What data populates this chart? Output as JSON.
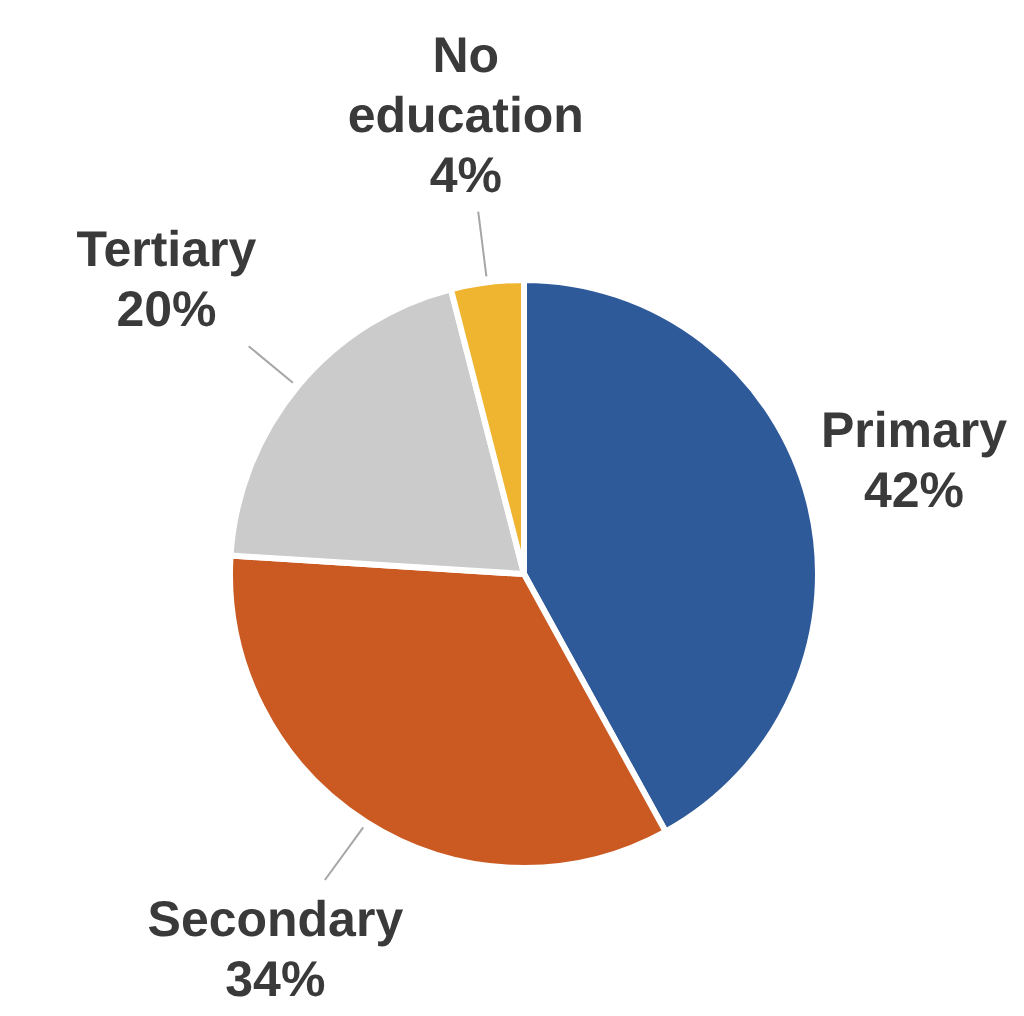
{
  "chart_data": {
    "type": "pie",
    "categories": [
      "Primary",
      "Secondary",
      "Tertiary",
      "No education"
    ],
    "values": [
      42,
      34,
      20,
      4
    ],
    "value_labels": [
      "42%",
      "34%",
      "20%",
      "4%"
    ],
    "colors": [
      "#2e5a9a",
      "#cb5a22",
      "#cbcbcb",
      "#f0b530"
    ]
  }
}
